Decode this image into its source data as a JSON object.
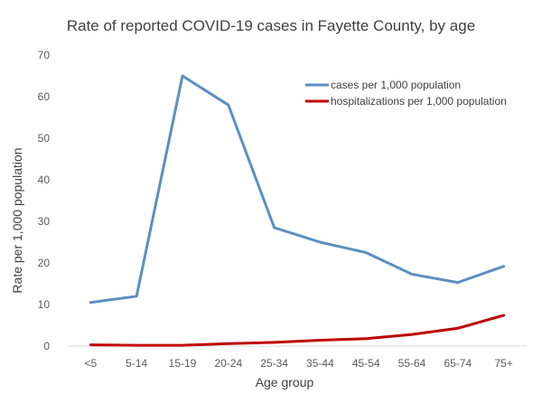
{
  "chart_data": {
    "type": "line",
    "title": "Rate of reported COVID-19 cases in Fayette County, by age",
    "xlabel": "Age group",
    "ylabel": "Rate per 1,000 population",
    "categories": [
      "<5",
      "5-14",
      "15-19",
      "20-24",
      "25-34",
      "35-44",
      "45-54",
      "55-64",
      "65-74",
      "75+"
    ],
    "ylim": [
      0,
      70
    ],
    "yticks": [
      0,
      10,
      20,
      30,
      40,
      50,
      60,
      70
    ],
    "grid": false,
    "legend_position": "top-right",
    "series": [
      {
        "name": "cases per 1,000 population",
        "color": "#5B8FC2",
        "values": [
          10.5,
          12.0,
          65.0,
          58.0,
          28.5,
          25.0,
          22.5,
          17.3,
          15.3,
          19.2
        ]
      },
      {
        "name": "hospitalizations per 1,000 population",
        "color": "#C00000",
        "values": [
          0.3,
          0.2,
          0.2,
          0.6,
          0.9,
          1.4,
          1.8,
          2.8,
          4.3,
          7.4
        ]
      }
    ]
  }
}
